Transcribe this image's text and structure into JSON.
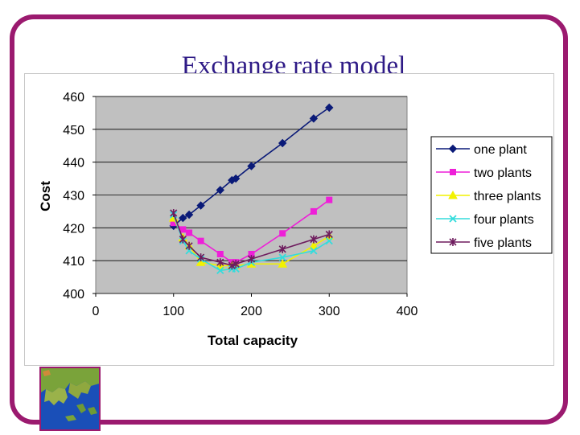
{
  "slide": {
    "title": "Exchange rate model"
  },
  "colors": {
    "frame": "#9b1a6f",
    "title": "#2e1a86",
    "plot_bg": "#c0c0c0"
  },
  "chart_data": {
    "type": "line",
    "title": "",
    "xlabel": "Total capacity",
    "ylabel": "Cost",
    "xlim": [
      0,
      400
    ],
    "ylim": [
      400,
      460
    ],
    "xticks": [
      0,
      100,
      200,
      300,
      400
    ],
    "yticks": [
      400,
      410,
      420,
      430,
      440,
      450,
      460
    ],
    "grid": "horizontal",
    "legend_position": "right",
    "series": [
      {
        "name": "one plant",
        "color": "#0a1a78",
        "marker": "diamond",
        "x": [
          100,
          112,
          120,
          135,
          160,
          175,
          180,
          200,
          240,
          280,
          300
        ],
        "y": [
          420.6,
          423,
          424,
          426.8,
          431.5,
          434.5,
          435,
          438.8,
          445.8,
          453.3,
          456.6
        ]
      },
      {
        "name": "two plants",
        "color": "#ee1fd8",
        "marker": "square",
        "x": [
          100,
          112,
          120,
          135,
          160,
          175,
          180,
          200,
          240,
          280,
          300
        ],
        "y": [
          421.5,
          419.5,
          418.5,
          416,
          412,
          409.5,
          409.5,
          412,
          418.3,
          425,
          428.5
        ]
      },
      {
        "name": "three plants",
        "color": "#f2f200",
        "marker": "triangle",
        "x": [
          100,
          112,
          120,
          135,
          160,
          175,
          180,
          200,
          240,
          280,
          300
        ],
        "y": [
          423,
          417,
          414.5,
          409.5,
          408.5,
          408.5,
          408.5,
          409,
          409,
          414.5,
          417.5
        ]
      },
      {
        "name": "four plants",
        "color": "#33dcdc",
        "marker": "x",
        "x": [
          100,
          112,
          120,
          135,
          160,
          175,
          180,
          200,
          240,
          280,
          300
        ],
        "y": [
          424,
          416,
          413,
          410.5,
          407,
          407.5,
          407.5,
          409.5,
          411,
          413,
          416
        ]
      },
      {
        "name": "five plants",
        "color": "#6e1c5e",
        "marker": "asterisk",
        "x": [
          100,
          112,
          120,
          135,
          160,
          175,
          180,
          200,
          240,
          280,
          300
        ],
        "y": [
          424.5,
          416.5,
          414.5,
          411,
          409.5,
          408.5,
          409,
          410.5,
          413.5,
          416.5,
          418
        ]
      }
    ]
  }
}
